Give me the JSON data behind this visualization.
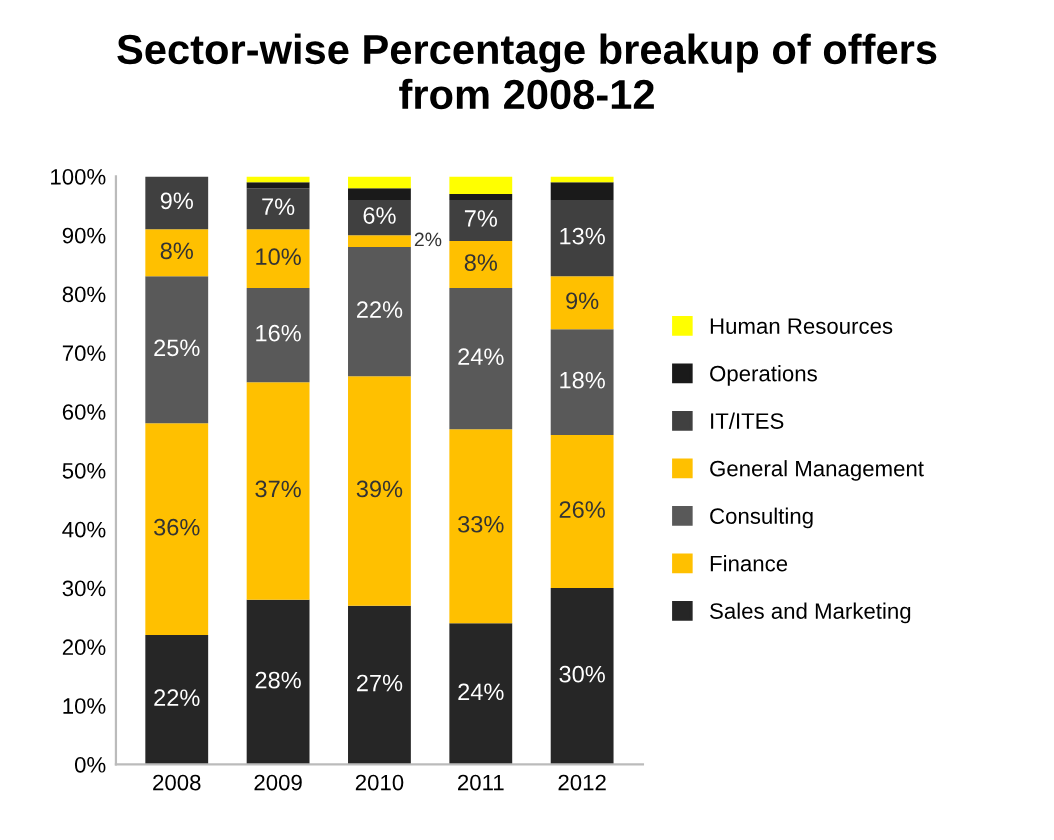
{
  "chart_data": {
    "type": "bar",
    "stacked": true,
    "title": "Sector-wise Percentage breakup of offers\nfrom 2008-12",
    "categories": [
      "2008",
      "2009",
      "2010",
      "2011",
      "2012"
    ],
    "series": [
      {
        "name": "Sales and Marketing",
        "color": "#262626",
        "values": [
          22,
          28,
          27,
          24,
          30
        ],
        "value_labels": [
          "22%",
          "28%",
          "27%",
          "24%",
          "30%"
        ]
      },
      {
        "name": "Finance",
        "color": "#ffc000",
        "values": [
          36,
          37,
          39,
          33,
          26
        ],
        "value_labels": [
          "36%",
          "37%",
          "39%",
          "33%",
          "26%"
        ]
      },
      {
        "name": "Consulting",
        "color": "#595959",
        "values": [
          25,
          16,
          22,
          24,
          18
        ],
        "value_labels": [
          "25%",
          "16%",
          "22%",
          "24%",
          "18%"
        ]
      },
      {
        "name": "General Management",
        "color": "#ffc000",
        "values": [
          8,
          10,
          2,
          8,
          9
        ],
        "value_labels": [
          "8%",
          "10%",
          "2%",
          "8%",
          "9%"
        ]
      },
      {
        "name": "IT/ITES",
        "color": "#404040",
        "values": [
          9,
          7,
          6,
          7,
          13
        ],
        "value_labels": [
          "9%",
          "7%",
          "6%",
          "7%",
          "13%"
        ]
      },
      {
        "name": "Operations",
        "color": "#1a1a1a",
        "values": [
          0,
          1,
          2,
          1,
          3
        ]
      },
      {
        "name": "Human Resources",
        "color": "#ffff00",
        "values": [
          0,
          1,
          2,
          3,
          1
        ]
      }
    ],
    "ylim": [
      0,
      100
    ],
    "yticks": [
      {
        "value": 0,
        "label": "0%"
      },
      {
        "value": 10,
        "label": "10%"
      },
      {
        "value": 20,
        "label": "20%"
      },
      {
        "value": 30,
        "label": "30%"
      },
      {
        "value": 40,
        "label": "40%"
      },
      {
        "value": 50,
        "label": "50%"
      },
      {
        "value": 60,
        "label": "60%"
      },
      {
        "value": 70,
        "label": "70%"
      },
      {
        "value": 80,
        "label": "80%"
      },
      {
        "value": 90,
        "label": "90%"
      },
      {
        "value": 100,
        "label": "100%"
      }
    ],
    "grid": false,
    "legend": "right"
  }
}
